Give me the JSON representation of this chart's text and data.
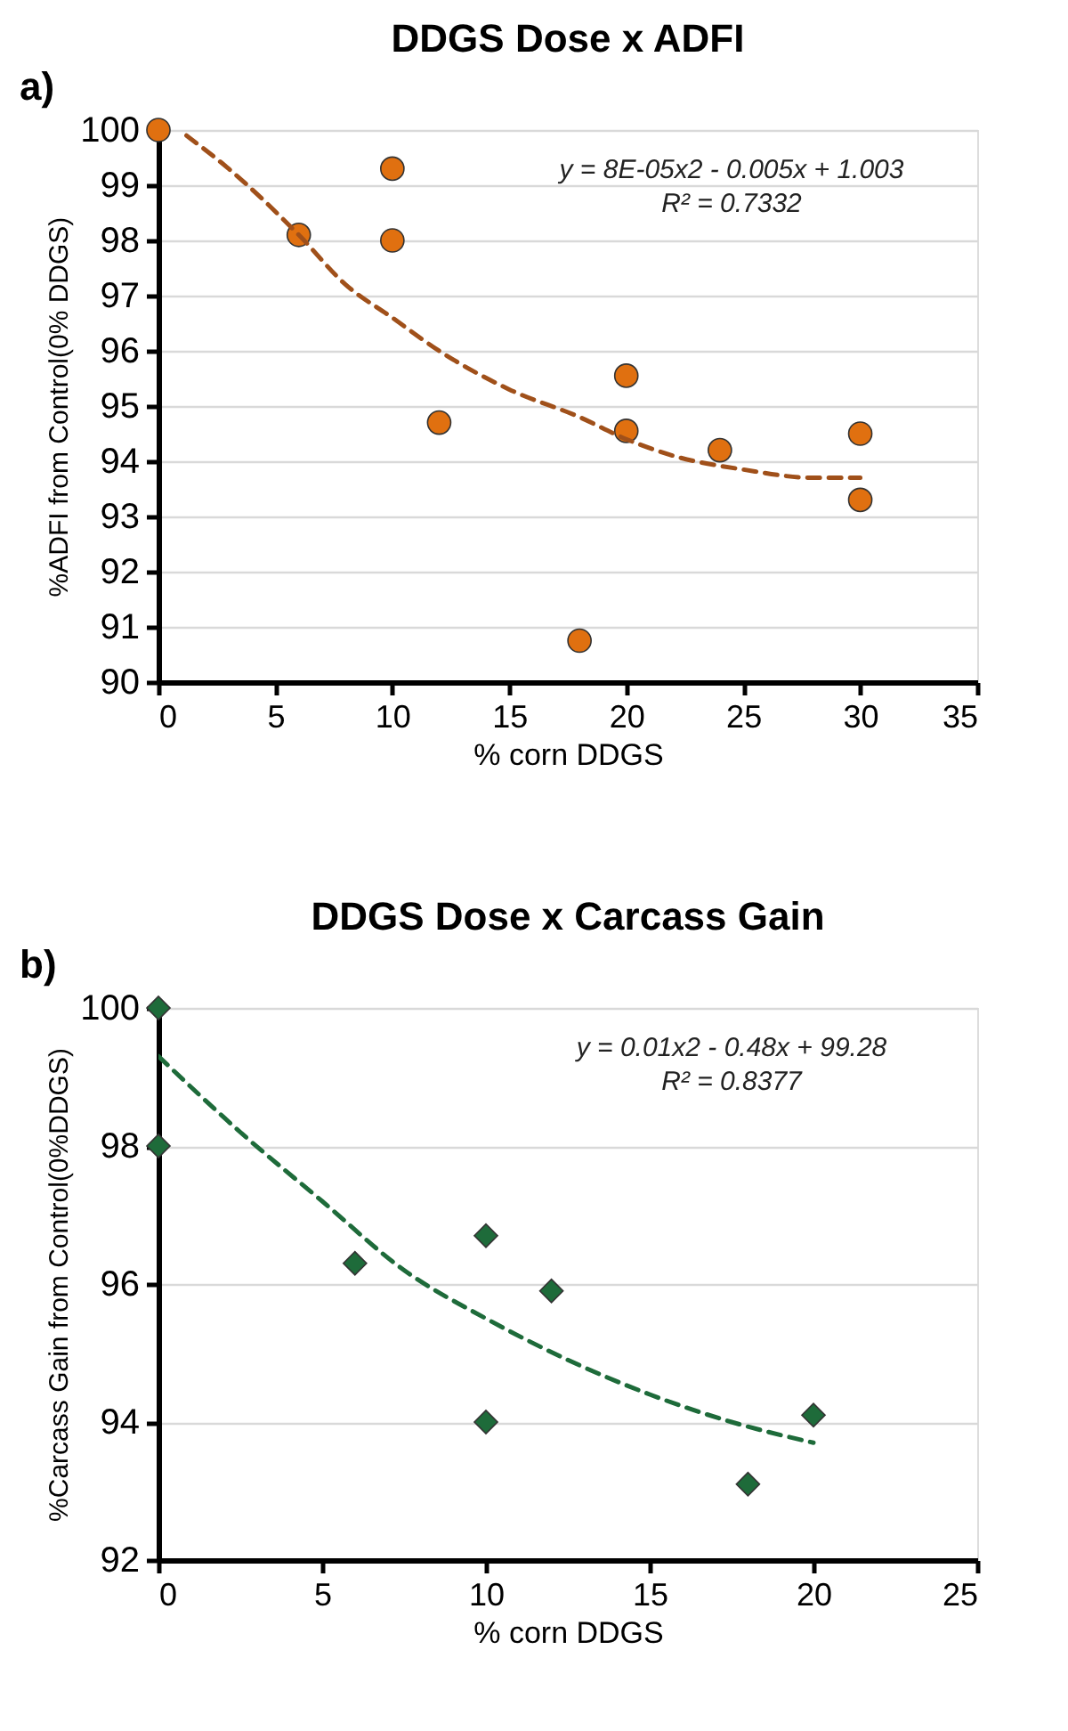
{
  "chart_data": [
    {
      "type": "scatter",
      "title": "DDGS Dose x ADFI",
      "xlabel": "% corn DDGS",
      "ylabel": "%ADFI from Control(0% DDGS)",
      "annotations": [
        "a)",
        "y = 8E-05x2 - 0.005x + 1.003",
        "R² = 0.7332"
      ],
      "xlim": [
        0,
        35
      ],
      "xticks": [
        0,
        5,
        10,
        15,
        20,
        25,
        30,
        35
      ],
      "ylim": [
        90,
        100
      ],
      "yticks": [
        90,
        91,
        92,
        93,
        94,
        95,
        96,
        97,
        98,
        99,
        100
      ],
      "grid": "y",
      "series": [
        {
          "color": "#e07010",
          "marker": "circle",
          "x": [
            0,
            6,
            10,
            10,
            12,
            18,
            20,
            20,
            24,
            30,
            30
          ],
          "values": [
            100,
            98.1,
            99.3,
            98.0,
            94.7,
            90.75,
            95.55,
            94.55,
            94.2,
            94.5,
            93.3
          ]
        },
        {
          "type": "line",
          "color": "#a0501a",
          "line_style": "dashed",
          "marker": "none",
          "x": [
            1.2,
            3,
            6,
            8,
            10,
            12,
            15,
            18,
            20,
            22,
            25,
            28,
            30
          ],
          "values": [
            99.9,
            99.3,
            98.1,
            97.2,
            96.6,
            96.0,
            95.3,
            94.8,
            94.4,
            94.1,
            93.85,
            93.7,
            93.7
          ]
        }
      ]
    },
    {
      "type": "scatter",
      "title": "DDGS Dose x Carcass Gain",
      "xlabel": "% corn DDGS",
      "ylabel": "%Carcass Gain from Control(0%DDGS)",
      "annotations": [
        "b)",
        "y = 0.01x2 - 0.48x + 99.28",
        "R² = 0.8377"
      ],
      "xlim": [
        0,
        25
      ],
      "xticks": [
        0,
        5,
        10,
        15,
        20,
        25
      ],
      "ylim": [
        92,
        100
      ],
      "yticks": [
        92,
        94,
        96,
        98,
        100
      ],
      "grid": "y",
      "series": [
        {
          "color": "#1e6b3a",
          "marker": "diamond",
          "x": [
            0,
            0,
            6,
            10,
            10,
            12,
            18,
            20
          ],
          "values": [
            100,
            98,
            96.3,
            96.7,
            94.0,
            95.9,
            93.1,
            94.1
          ]
        },
        {
          "type": "line",
          "color": "#1e6b3a",
          "line_style": "dashed",
          "marker": "none",
          "x": [
            0,
            2.5,
            5,
            7.5,
            10,
            12.5,
            15,
            17.5,
            20
          ],
          "values": [
            99.3,
            98.2,
            97.2,
            96.2,
            95.5,
            94.9,
            94.4,
            94.0,
            93.7
          ]
        }
      ]
    }
  ]
}
